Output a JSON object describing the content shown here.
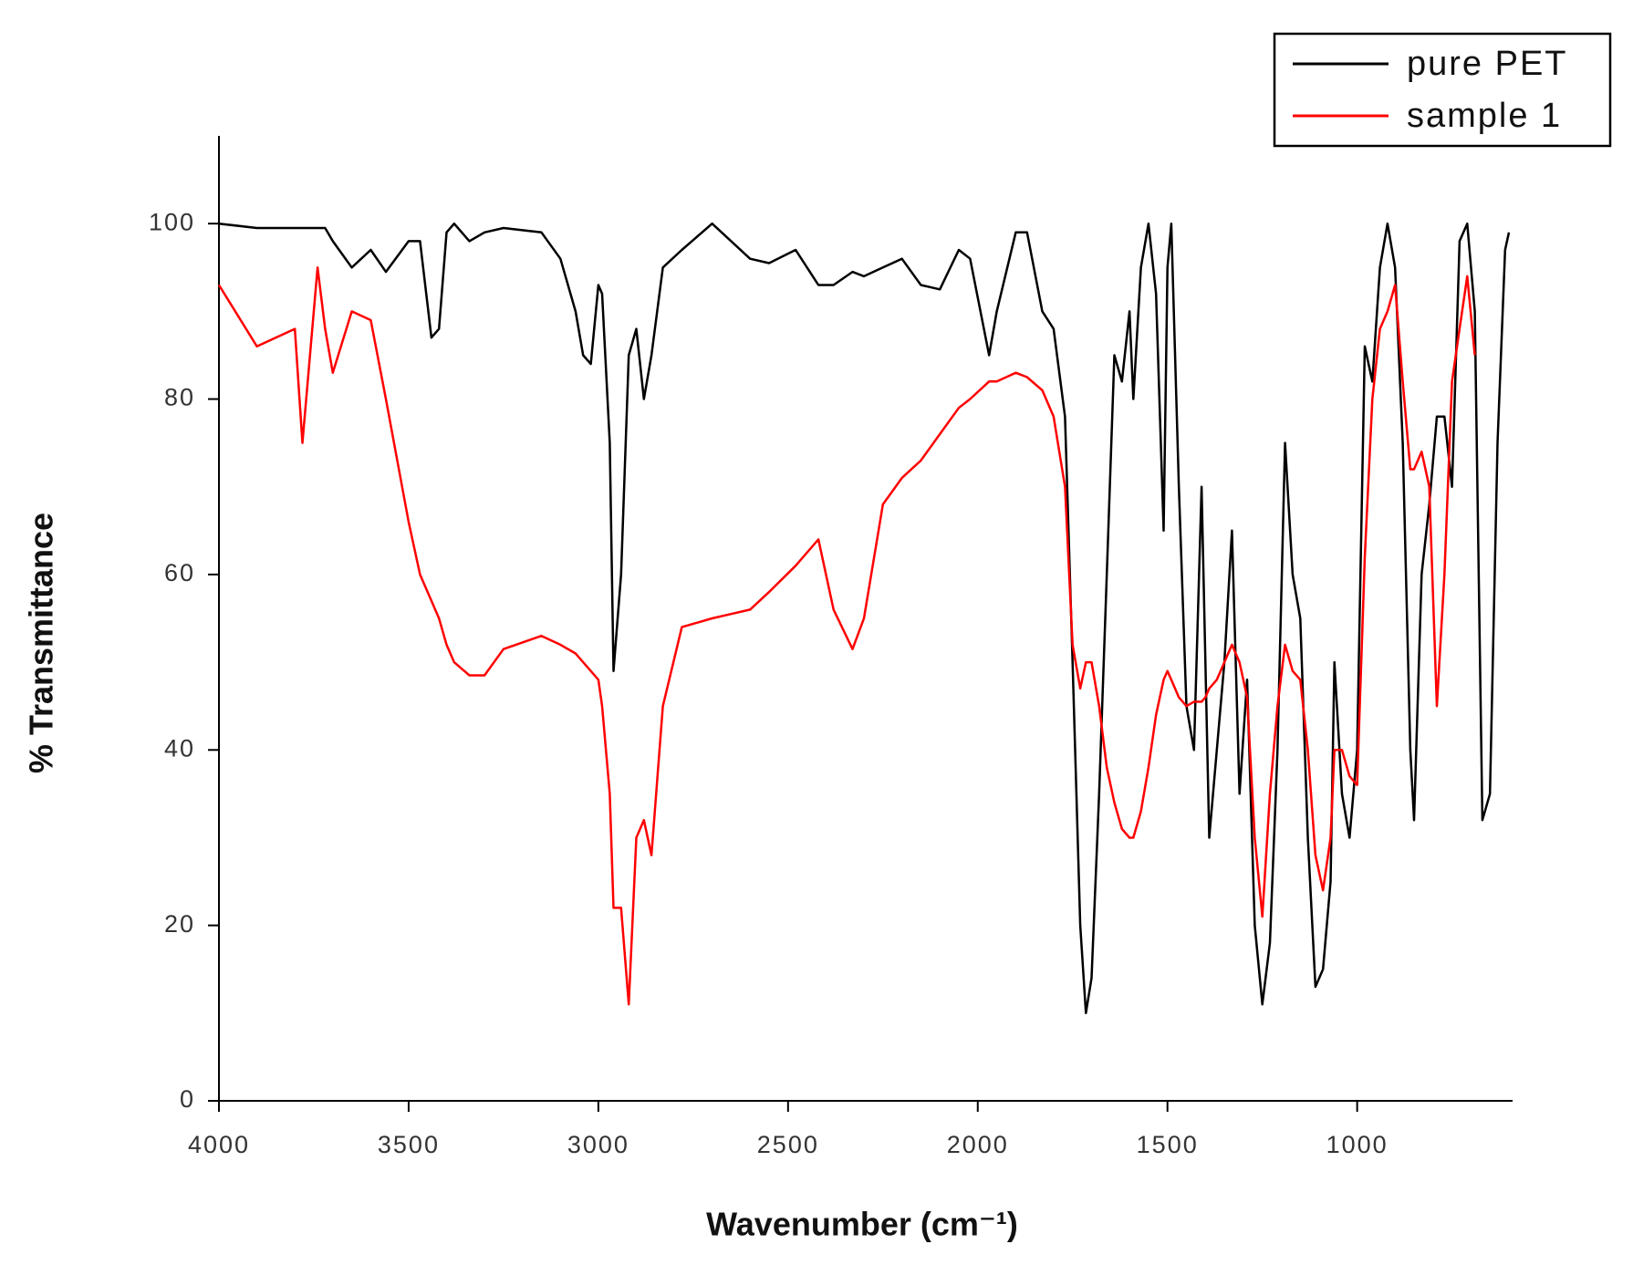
{
  "chart_data": {
    "type": "line",
    "xlabel": "Wavenumber (cm⁻¹)",
    "ylabel": "% Transmittance",
    "xlim": [
      4000,
      600
    ],
    "ylim": [
      0,
      110
    ],
    "xticks": [
      4000,
      3500,
      3000,
      2500,
      2000,
      1500,
      1000
    ],
    "yticks": [
      0,
      20,
      40,
      60,
      80,
      100
    ],
    "legend": "upper right",
    "x": [
      4000,
      3900,
      3800,
      3780,
      3740,
      3720,
      3700,
      3650,
      3600,
      3560,
      3500,
      3470,
      3440,
      3420,
      3400,
      3380,
      3340,
      3300,
      3250,
      3150,
      3100,
      3060,
      3040,
      3020,
      3000,
      2990,
      2970,
      2960,
      2940,
      2920,
      2900,
      2880,
      2860,
      2830,
      2780,
      2700,
      2650,
      2600,
      2550,
      2480,
      2420,
      2380,
      2330,
      2300,
      2250,
      2200,
      2150,
      2100,
      2050,
      2020,
      1970,
      1950,
      1900,
      1870,
      1830,
      1800,
      1770,
      1750,
      1730,
      1715,
      1700,
      1680,
      1660,
      1640,
      1620,
      1600,
      1590,
      1570,
      1550,
      1530,
      1510,
      1500,
      1490,
      1470,
      1450,
      1430,
      1410,
      1400,
      1390,
      1370,
      1350,
      1330,
      1310,
      1290,
      1270,
      1250,
      1230,
      1210,
      1190,
      1170,
      1150,
      1130,
      1110,
      1090,
      1070,
      1060,
      1040,
      1020,
      1000,
      980,
      960,
      940,
      920,
      900,
      880,
      860,
      850,
      830,
      810,
      790,
      770,
      750,
      730,
      710,
      690,
      670,
      650,
      630,
      610,
      600
    ],
    "series": [
      {
        "name": "pure PET",
        "color": "#000000",
        "values": [
          100,
          99.5,
          99.5,
          99.5,
          99.5,
          99.5,
          98,
          95,
          97,
          94.5,
          98,
          98,
          87,
          88,
          99,
          100,
          98,
          99,
          99.5,
          99,
          96,
          90,
          85,
          84,
          93,
          92,
          75,
          49,
          60,
          85,
          88,
          80,
          85,
          95,
          97,
          100,
          98,
          96,
          95.5,
          97,
          93,
          93,
          94.5,
          94,
          95,
          96,
          93,
          92.5,
          97,
          96,
          85,
          90,
          99,
          99,
          90,
          88,
          78,
          50,
          20,
          10,
          14,
          35,
          60,
          85,
          82,
          90,
          80,
          95,
          100,
          92,
          65,
          95,
          100,
          70,
          45,
          40,
          70,
          50,
          30,
          40,
          50,
          65,
          35,
          48,
          20,
          11,
          18,
          40,
          75,
          60,
          55,
          30,
          13,
          15,
          25,
          50,
          35,
          30,
          40,
          86,
          82,
          95,
          100,
          95,
          75,
          40,
          32,
          60,
          68,
          78,
          78,
          70,
          98,
          100,
          90,
          32,
          35,
          75,
          97,
          99
        ]
      },
      {
        "name": "sample 1",
        "color": "#ff0000",
        "values": [
          93,
          86,
          88,
          75,
          95,
          88,
          83,
          90,
          89,
          80,
          66,
          60,
          57,
          55,
          52,
          50,
          48.5,
          48.5,
          51.5,
          53,
          52,
          51,
          50,
          49,
          48,
          45,
          35,
          22,
          22,
          11,
          30,
          32,
          28,
          45,
          54,
          55,
          55.5,
          56,
          58,
          61,
          64,
          56,
          51.5,
          55,
          68,
          71,
          73,
          76,
          79,
          80,
          82,
          82,
          83,
          82.5,
          81,
          78,
          70,
          52,
          47,
          50,
          50,
          45,
          38,
          34,
          31,
          30,
          30,
          33,
          38,
          44,
          48,
          49,
          48,
          46,
          45,
          45.5,
          45.5,
          46,
          47,
          48,
          50,
          52,
          50,
          46,
          30,
          21,
          35,
          45,
          52,
          49,
          48,
          40,
          28,
          24,
          30,
          40,
          40,
          37,
          36,
          62,
          80,
          88,
          90,
          93,
          82,
          72,
          72,
          74,
          70,
          45,
          60,
          82,
          88,
          94,
          85,
          null,
          null,
          null,
          null,
          null
        ]
      }
    ]
  }
}
